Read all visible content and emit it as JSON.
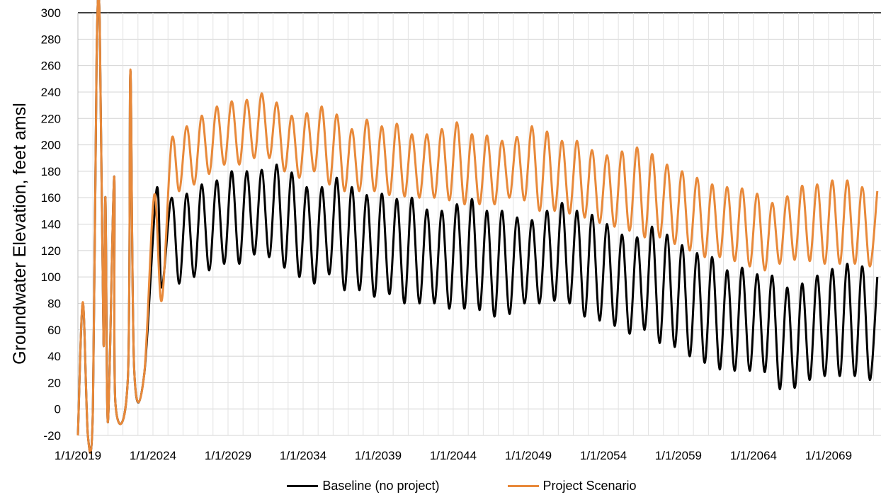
{
  "chart_data": {
    "type": "line",
    "ylabel": "Groundwater Elevation, feet amsl",
    "ylim": [
      -20,
      300
    ],
    "y_ticks": [
      "300",
      "280",
      "260",
      "240",
      "220",
      "200",
      "180",
      "160",
      "140",
      "120",
      "100",
      "80",
      "60",
      "40",
      "20",
      "0",
      "-20"
    ],
    "x_ticks": [
      "1/1/2019",
      "1/1/2024",
      "1/1/2029",
      "1/1/2034",
      "1/1/2039",
      "1/1/2044",
      "1/1/2049",
      "1/1/2054",
      "1/1/2059",
      "1/1/2064",
      "1/1/2069"
    ],
    "x_range": [
      "2019-01-01",
      "2072-06-30"
    ],
    "grid": true,
    "legend_position": "bottom",
    "series": [
      {
        "name": "Baseline (no project)",
        "color": "#000000",
        "early_points": [
          [
            "2019-01-01",
            -20
          ],
          [
            "2019-05-01",
            80
          ],
          [
            "2019-09-01",
            -20
          ],
          [
            "2020-01-01",
            0
          ],
          [
            "2020-04-01",
            270
          ],
          [
            "2020-06-15",
            293
          ],
          [
            "2020-09-15",
            50
          ],
          [
            "2020-11-01",
            160
          ],
          [
            "2021-01-01",
            -10
          ],
          [
            "2021-06-01",
            176
          ],
          [
            "2021-07-01",
            5
          ],
          [
            "2022-05-01",
            24
          ],
          [
            "2022-07-01",
            256
          ],
          [
            "2022-10-01",
            30
          ],
          [
            "2023-06-01",
            26
          ],
          [
            "2024-04-01",
            167
          ],
          [
            "2024-08-01",
            92
          ]
        ],
        "peaks": [
          [
            "2025",
            160
          ],
          [
            "2026",
            163
          ],
          [
            "2027",
            170
          ],
          [
            "2028",
            173
          ],
          [
            "2029",
            180
          ],
          [
            "2030",
            180
          ],
          [
            "2031",
            181
          ],
          [
            "2032",
            185
          ],
          [
            "2033",
            179
          ],
          [
            "2034",
            168
          ],
          [
            "2035",
            168
          ],
          [
            "2036",
            175
          ],
          [
            "2037",
            168
          ],
          [
            "2038",
            162
          ],
          [
            "2039",
            163
          ],
          [
            "2040",
            159
          ],
          [
            "2041",
            160
          ],
          [
            "2042",
            151
          ],
          [
            "2043",
            150
          ],
          [
            "2044",
            155
          ],
          [
            "2045",
            159
          ],
          [
            "2046",
            150
          ],
          [
            "2047",
            150
          ],
          [
            "2048",
            145
          ],
          [
            "2049",
            143
          ],
          [
            "2050",
            150
          ],
          [
            "2051",
            156
          ],
          [
            "2052",
            150
          ],
          [
            "2053",
            147
          ],
          [
            "2054",
            140
          ],
          [
            "2055",
            132
          ],
          [
            "2056",
            130
          ],
          [
            "2057",
            138
          ],
          [
            "2058",
            132
          ],
          [
            "2059",
            124
          ],
          [
            "2060",
            118
          ],
          [
            "2061",
            115
          ],
          [
            "2062",
            105
          ],
          [
            "2063",
            107
          ],
          [
            "2064",
            102
          ],
          [
            "2065",
            101
          ],
          [
            "2066",
            92
          ],
          [
            "2067",
            95
          ],
          [
            "2068",
            101
          ],
          [
            "2069",
            106
          ],
          [
            "2070",
            110
          ],
          [
            "2071",
            108
          ],
          [
            "2072",
            100
          ]
        ],
        "troughs": [
          [
            "2025",
            95
          ],
          [
            "2026",
            100
          ],
          [
            "2027",
            105
          ],
          [
            "2028",
            110
          ],
          [
            "2029",
            110
          ],
          [
            "2030",
            117
          ],
          [
            "2031",
            115
          ],
          [
            "2032",
            107
          ],
          [
            "2033",
            100
          ],
          [
            "2034",
            95
          ],
          [
            "2035",
            102
          ],
          [
            "2036",
            90
          ],
          [
            "2037",
            90
          ],
          [
            "2038",
            85
          ],
          [
            "2039",
            87
          ],
          [
            "2040",
            80
          ],
          [
            "2041",
            80
          ],
          [
            "2042",
            80
          ],
          [
            "2043",
            76
          ],
          [
            "2044",
            76
          ],
          [
            "2045",
            75
          ],
          [
            "2046",
            70
          ],
          [
            "2047",
            72
          ],
          [
            "2048",
            80
          ],
          [
            "2049",
            80
          ],
          [
            "2050",
            82
          ],
          [
            "2051",
            80
          ],
          [
            "2052",
            70
          ],
          [
            "2053",
            67
          ],
          [
            "2054",
            63
          ],
          [
            "2055",
            57
          ],
          [
            "2056",
            60
          ],
          [
            "2057",
            50
          ],
          [
            "2058",
            47
          ],
          [
            "2059",
            40
          ],
          [
            "2060",
            35
          ],
          [
            "2061",
            30
          ],
          [
            "2062",
            29
          ],
          [
            "2063",
            29
          ],
          [
            "2064",
            28
          ],
          [
            "2065",
            15
          ],
          [
            "2066",
            16
          ],
          [
            "2067",
            22
          ],
          [
            "2068",
            25
          ],
          [
            "2069",
            25
          ],
          [
            "2070",
            25
          ],
          [
            "2071",
            22
          ],
          [
            "2072",
            15
          ]
        ]
      },
      {
        "name": "Project Scenario",
        "color": "#E8893A",
        "early_points": [
          [
            "2019-01-01",
            -20
          ],
          [
            "2019-05-01",
            81
          ],
          [
            "2019-09-01",
            -20
          ],
          [
            "2020-01-01",
            0
          ],
          [
            "2020-04-01",
            270
          ],
          [
            "2020-06-15",
            293
          ],
          [
            "2020-09-15",
            50
          ],
          [
            "2020-11-01",
            160
          ],
          [
            "2021-01-01",
            -10
          ],
          [
            "2021-06-01",
            176
          ],
          [
            "2021-07-01",
            5
          ],
          [
            "2022-05-01",
            24
          ],
          [
            "2022-07-01",
            257
          ],
          [
            "2022-10-01",
            30
          ],
          [
            "2023-06-01",
            26
          ],
          [
            "2024-02-01",
            162
          ],
          [
            "2024-08-01",
            82
          ]
        ],
        "peaks": [
          [
            "2025",
            204
          ],
          [
            "2026",
            214
          ],
          [
            "2027",
            222
          ],
          [
            "2028",
            229
          ],
          [
            "2029",
            233
          ],
          [
            "2030",
            234
          ],
          [
            "2031",
            239
          ],
          [
            "2032",
            232
          ],
          [
            "2033",
            222
          ],
          [
            "2034",
            224
          ],
          [
            "2035",
            229
          ],
          [
            "2036",
            223
          ],
          [
            "2037",
            212
          ],
          [
            "2038",
            219
          ],
          [
            "2039",
            214
          ],
          [
            "2040",
            216
          ],
          [
            "2041",
            208
          ],
          [
            "2042",
            208
          ],
          [
            "2043",
            212
          ],
          [
            "2044",
            217
          ],
          [
            "2045",
            208
          ],
          [
            "2046",
            207
          ],
          [
            "2047",
            203
          ],
          [
            "2048",
            206
          ],
          [
            "2049",
            214
          ],
          [
            "2050",
            210
          ],
          [
            "2051",
            203
          ],
          [
            "2052",
            203
          ],
          [
            "2053",
            196
          ],
          [
            "2054",
            192
          ],
          [
            "2055",
            195
          ],
          [
            "2056",
            198
          ],
          [
            "2057",
            193
          ],
          [
            "2058",
            185
          ],
          [
            "2059",
            180
          ],
          [
            "2060",
            175
          ],
          [
            "2061",
            170
          ],
          [
            "2062",
            168
          ],
          [
            "2063",
            167
          ],
          [
            "2064",
            163
          ],
          [
            "2065",
            156
          ],
          [
            "2066",
            161
          ],
          [
            "2067",
            169
          ],
          [
            "2068",
            170
          ],
          [
            "2069",
            173
          ],
          [
            "2070",
            173
          ],
          [
            "2071",
            168
          ],
          [
            "2072",
            165
          ]
        ],
        "troughs": [
          [
            "2025",
            165
          ],
          [
            "2026",
            170
          ],
          [
            "2027",
            178
          ],
          [
            "2028",
            185
          ],
          [
            "2029",
            185
          ],
          [
            "2030",
            190
          ],
          [
            "2031",
            190
          ],
          [
            "2032",
            180
          ],
          [
            "2033",
            175
          ],
          [
            "2034",
            180
          ],
          [
            "2035",
            170
          ],
          [
            "2036",
            165
          ],
          [
            "2037",
            165
          ],
          [
            "2038",
            165
          ],
          [
            "2039",
            162
          ],
          [
            "2040",
            161
          ],
          [
            "2041",
            160
          ],
          [
            "2042",
            160
          ],
          [
            "2043",
            158
          ],
          [
            "2044",
            155
          ],
          [
            "2045",
            155
          ],
          [
            "2046",
            155
          ],
          [
            "2047",
            160
          ],
          [
            "2048",
            158
          ],
          [
            "2049",
            150
          ],
          [
            "2050",
            150
          ],
          [
            "2051",
            148
          ],
          [
            "2052",
            145
          ],
          [
            "2053",
            141
          ],
          [
            "2054",
            138
          ],
          [
            "2055",
            135
          ],
          [
            "2056",
            130
          ],
          [
            "2057",
            130
          ],
          [
            "2058",
            125
          ],
          [
            "2059",
            120
          ],
          [
            "2060",
            115
          ],
          [
            "2061",
            115
          ],
          [
            "2062",
            112
          ],
          [
            "2063",
            108
          ],
          [
            "2064",
            105
          ],
          [
            "2065",
            110
          ],
          [
            "2066",
            113
          ],
          [
            "2067",
            112
          ],
          [
            "2068",
            110
          ],
          [
            "2069",
            110
          ],
          [
            "2070",
            110
          ],
          [
            "2071",
            108
          ],
          [
            "2072",
            108
          ]
        ]
      }
    ]
  }
}
